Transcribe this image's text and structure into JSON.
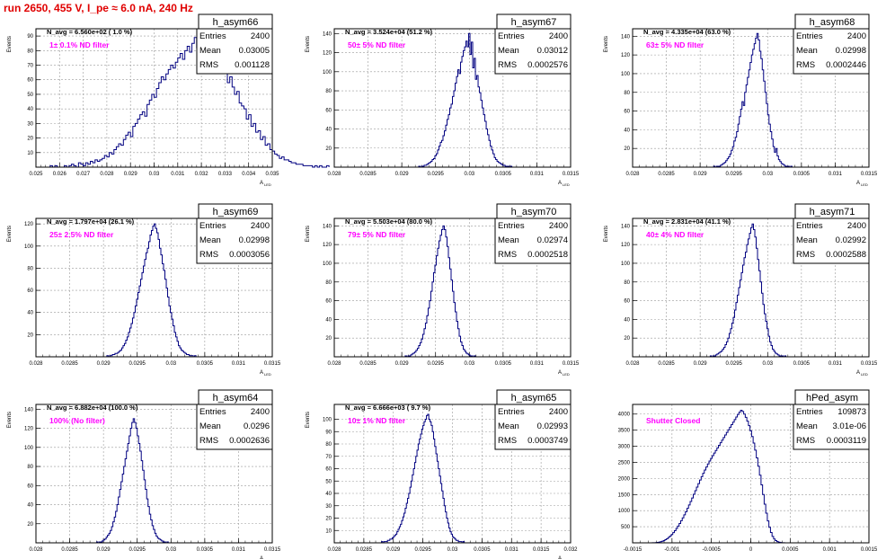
{
  "page_title": "run 2650,   455 V, I_pe ≈ 6.0 nA, 240 Hz",
  "colors": {
    "title": "#e00000",
    "annotation": "#ff00ff",
    "histogram": "#000080",
    "grid": "#9a9a9a"
  },
  "chart_data": [
    {
      "type": "histogram",
      "title": "h_asym66",
      "navg": "N_avg = 6.560e+02 ( 1.0 %)",
      "annotation": "1± 0.1% ND filter",
      "stats": [
        {
          "label": "Entries",
          "value": "2400"
        },
        {
          "label": "Mean",
          "value": "0.03005"
        },
        {
          "label": "RMS",
          "value": "0.001128"
        }
      ],
      "ylabel": "Events",
      "xlabel": "A LED",
      "xlim": [
        0.025,
        0.035
      ],
      "ylim": [
        0,
        95
      ],
      "xticks": [
        "0.025",
        "0.026",
        "0.027",
        "0.028",
        "0.029",
        "0.03",
        "0.031",
        "0.032",
        "0.033",
        "0.034",
        "0.035"
      ],
      "yticks": [
        "10",
        "20",
        "30",
        "40",
        "50",
        "60",
        "70",
        "80",
        "90"
      ],
      "bin_start": 0.0256,
      "bin_width": 0.0001,
      "values": [
        1,
        0,
        1,
        0,
        0,
        0,
        1,
        0,
        1,
        2,
        1,
        0,
        3,
        2,
        1,
        3,
        2,
        4,
        3,
        5,
        4,
        5,
        6,
        8,
        7,
        10,
        9,
        12,
        14,
        16,
        15,
        19,
        22,
        24,
        21,
        28,
        30,
        33,
        36,
        38,
        35,
        43,
        46,
        50,
        48,
        54,
        58,
        62,
        60,
        64,
        67,
        70,
        68,
        72,
        75,
        78,
        74,
        80,
        83,
        79,
        85,
        89,
        82,
        91,
        86,
        80,
        88,
        84,
        76,
        81,
        74,
        70,
        73,
        65,
        66,
        58,
        62,
        55,
        50,
        52,
        44,
        42,
        40,
        33,
        36,
        28,
        30,
        24,
        25,
        19,
        21,
        15,
        16,
        12,
        11,
        9,
        8,
        6,
        7,
        5,
        5,
        4,
        3,
        3,
        2,
        2,
        2,
        1,
        1,
        1,
        1,
        0,
        1,
        0,
        1,
        0,
        0,
        1
      ]
    },
    {
      "type": "histogram",
      "title": "h_asym67",
      "navg": "N_avg = 3.524e+04 (51.2 %)",
      "annotation": "50± 5% ND filter",
      "stats": [
        {
          "label": "Entries",
          "value": "2400"
        },
        {
          "label": "Mean",
          "value": "0.03012"
        },
        {
          "label": "RMS",
          "value": "0.0002576"
        }
      ],
      "ylabel": "Events",
      "xlabel": "A LED",
      "xlim": [
        0.028,
        0.0315
      ],
      "ylim": [
        0,
        145
      ],
      "xticks": [
        "0.028",
        "0.0285",
        "0.029",
        "0.0295",
        "0.03",
        "0.0305",
        "0.031",
        "0.0315"
      ],
      "yticks": [
        "20",
        "40",
        "60",
        "80",
        "100",
        "120",
        "140"
      ],
      "bin_start": 0.02925,
      "bin_width": 2e-05,
      "values": [
        1,
        0,
        1,
        1,
        2,
        2,
        3,
        4,
        5,
        6,
        8,
        9,
        12,
        14,
        18,
        22,
        26,
        28,
        33,
        38,
        44,
        50,
        55,
        62,
        66,
        74,
        80,
        88,
        95,
        102,
        98,
        110,
        116,
        122,
        126,
        132,
        126,
        140,
        118,
        131,
        104,
        114,
        92,
        96,
        84,
        78,
        70,
        62,
        55,
        48,
        40,
        34,
        28,
        22,
        18,
        14,
        10,
        8,
        6,
        5,
        4,
        3,
        2,
        2,
        1,
        1,
        1,
        0,
        1
      ]
    },
    {
      "type": "histogram",
      "title": "h_asym68",
      "navg": "N_avg = 4.335e+04 (63.0 %)",
      "annotation": "63± 5% ND filter",
      "stats": [
        {
          "label": "Entries",
          "value": "2400"
        },
        {
          "label": "Mean",
          "value": "0.02998"
        },
        {
          "label": "RMS",
          "value": "0.0002446"
        }
      ],
      "ylabel": "Events",
      "xlabel": "A LED",
      "xlim": [
        0.028,
        0.0315
      ],
      "ylim": [
        0,
        148
      ],
      "xticks": [
        "0.028",
        "0.0285",
        "0.029",
        "0.0295",
        "0.03",
        "0.0305",
        "0.031",
        "0.0315"
      ],
      "yticks": [
        "20",
        "40",
        "60",
        "80",
        "100",
        "120",
        "140"
      ],
      "bin_start": 0.0292,
      "bin_width": 2e-05,
      "values": [
        1,
        0,
        1,
        1,
        1,
        2,
        3,
        4,
        5,
        7,
        9,
        11,
        14,
        18,
        22,
        28,
        32,
        38,
        46,
        54,
        62,
        70,
        66,
        80,
        88,
        96,
        104,
        112,
        120,
        126,
        132,
        138,
        143,
        136,
        124,
        116,
        104,
        92,
        80,
        68,
        56,
        46,
        38,
        30,
        22,
        16,
        20,
        12,
        8,
        6,
        4,
        3,
        2,
        1,
        1,
        1,
        0,
        1
      ]
    },
    {
      "type": "histogram",
      "title": "h_asym69",
      "navg": "N_avg = 1.797e+04 (26.1 %)",
      "annotation": "25± 2.5% ND filter",
      "stats": [
        {
          "label": "Entries",
          "value": "2400"
        },
        {
          "label": "Mean",
          "value": "0.02998"
        },
        {
          "label": "RMS",
          "value": "0.0003056"
        }
      ],
      "ylabel": "Events",
      "xlabel": "A LED",
      "xlim": [
        0.028,
        0.0315
      ],
      "ylim": [
        0,
        125
      ],
      "xticks": [
        "0.028",
        "0.0285",
        "0.029",
        "0.0295",
        "0.03",
        "0.0305",
        "0.031",
        "0.0315"
      ],
      "yticks": [
        "20",
        "40",
        "60",
        "80",
        "100",
        "120"
      ],
      "bin_start": 0.02905,
      "bin_width": 2e-05,
      "values": [
        1,
        0,
        1,
        1,
        2,
        2,
        3,
        3,
        4,
        5,
        6,
        8,
        10,
        12,
        15,
        18,
        22,
        26,
        30,
        35,
        40,
        46,
        52,
        58,
        64,
        70,
        76,
        82,
        88,
        94,
        98,
        104,
        110,
        114,
        118,
        120,
        116,
        112,
        106,
        98,
        92,
        84,
        78,
        70,
        62,
        54,
        46,
        40,
        34,
        28,
        22,
        18,
        14,
        10,
        8,
        6,
        5,
        4,
        3,
        2,
        2,
        1,
        1,
        1,
        0,
        1
      ]
    },
    {
      "type": "histogram",
      "title": "h_asym70",
      "navg": "N_avg = 5.503e+04 (80.0 %)",
      "annotation": "79± 5% ND filter",
      "stats": [
        {
          "label": "Entries",
          "value": "2400"
        },
        {
          "label": "Mean",
          "value": "0.02974"
        },
        {
          "label": "RMS",
          "value": "0.0002518"
        }
      ],
      "ylabel": "Events",
      "xlabel": "A LED",
      "xlim": [
        0.028,
        0.0315
      ],
      "ylim": [
        0,
        148
      ],
      "xticks": [
        "0.028",
        "0.0285",
        "0.029",
        "0.0295",
        "0.03",
        "0.0305",
        "0.031",
        "0.0315"
      ],
      "yticks": [
        "20",
        "40",
        "60",
        "80",
        "100",
        "120",
        "140"
      ],
      "bin_start": 0.02905,
      "bin_width": 2e-05,
      "values": [
        1,
        0,
        1,
        1,
        2,
        3,
        4,
        5,
        7,
        9,
        12,
        15,
        19,
        24,
        30,
        36,
        44,
        52,
        60,
        70,
        80,
        90,
        98,
        108,
        116,
        124,
        130,
        136,
        140,
        136,
        128,
        118,
        106,
        94,
        82,
        70,
        58,
        48,
        38,
        30,
        22,
        16,
        12,
        8,
        6,
        4,
        3,
        2,
        1,
        1,
        0,
        1
      ]
    },
    {
      "type": "histogram",
      "title": "h_asym71",
      "navg": "N_avg = 2.831e+04 (41.1 %)",
      "annotation": "40± 4% ND filter",
      "stats": [
        {
          "label": "Entries",
          "value": "2400"
        },
        {
          "label": "Mean",
          "value": "0.02992"
        },
        {
          "label": "RMS",
          "value": "0.0002588"
        }
      ],
      "ylabel": "Events",
      "xlabel": "A LED",
      "xlim": [
        0.028,
        0.0315
      ],
      "ylim": [
        0,
        148
      ],
      "xticks": [
        "0.028",
        "0.0285",
        "0.029",
        "0.0295",
        "0.03",
        "0.0305",
        "0.031",
        "0.0315"
      ],
      "yticks": [
        "20",
        "40",
        "60",
        "80",
        "100",
        "120",
        "140"
      ],
      "bin_start": 0.02915,
      "bin_width": 2e-05,
      "values": [
        1,
        0,
        1,
        1,
        2,
        3,
        4,
        5,
        6,
        8,
        10,
        13,
        16,
        20,
        25,
        30,
        36,
        42,
        50,
        58,
        66,
        74,
        82,
        90,
        98,
        106,
        112,
        120,
        126,
        132,
        138,
        142,
        136,
        128,
        116,
        104,
        92,
        80,
        68,
        56,
        46,
        38,
        30,
        22,
        16,
        12,
        8,
        6,
        4,
        3,
        2,
        1,
        1,
        1,
        0,
        1
      ]
    },
    {
      "type": "histogram",
      "title": "h_asym64",
      "navg": "N_avg = 6.882e+04 (100.0 %)",
      "annotation": "100% (No filter)",
      "stats": [
        {
          "label": "Entries",
          "value": "2400"
        },
        {
          "label": "Mean",
          "value": "0.0296"
        },
        {
          "label": "RMS",
          "value": "0.0002636"
        }
      ],
      "ylabel": "Events",
      "xlabel": "A LED",
      "xlim": [
        0.028,
        0.0315
      ],
      "ylim": [
        0,
        145
      ],
      "xticks": [
        "0.028",
        "0.0285",
        "0.029",
        "0.0295",
        "0.03",
        "0.0305",
        "0.031",
        "0.0315"
      ],
      "yticks": [
        "20",
        "40",
        "60",
        "80",
        "100",
        "120",
        "140"
      ],
      "bin_start": 0.0289,
      "bin_width": 2e-05,
      "values": [
        1,
        0,
        1,
        1,
        2,
        3,
        4,
        6,
        8,
        10,
        13,
        17,
        22,
        27,
        33,
        40,
        48,
        56,
        64,
        72,
        80,
        88,
        96,
        104,
        112,
        120,
        126,
        130,
        126,
        120,
        112,
        104,
        96,
        86,
        76,
        66,
        56,
        46,
        38,
        30,
        24,
        18,
        14,
        10,
        7,
        5,
        4,
        3,
        2,
        1,
        1,
        0,
        1
      ]
    },
    {
      "type": "histogram",
      "title": "h_asym65",
      "navg": "N_avg = 6.666e+03 ( 9.7 %)",
      "annotation": "10± 1% ND filter",
      "stats": [
        {
          "label": "Entries",
          "value": "2400"
        },
        {
          "label": "Mean",
          "value": "0.02993"
        },
        {
          "label": "RMS",
          "value": "0.0003749"
        }
      ],
      "ylabel": "Events",
      "xlabel": "A LED",
      "xlim": [
        0.028,
        0.032
      ],
      "ylim": [
        0,
        112
      ],
      "xticks": [
        "0.028",
        "0.0285",
        "0.029",
        "0.0295",
        "0.03",
        "0.0305",
        "0.031",
        "0.0315",
        "0.032"
      ],
      "yticks": [
        "10",
        "20",
        "30",
        "40",
        "50",
        "60",
        "70",
        "80",
        "90",
        "100"
      ],
      "bin_start": 0.0288,
      "bin_width": 2e-05,
      "values": [
        1,
        0,
        1,
        1,
        1,
        2,
        2,
        3,
        3,
        4,
        5,
        6,
        7,
        9,
        11,
        13,
        15,
        18,
        21,
        24,
        28,
        32,
        36,
        40,
        45,
        50,
        55,
        60,
        65,
        70,
        75,
        80,
        84,
        88,
        92,
        95,
        98,
        100,
        103,
        104,
        100,
        98,
        95,
        90,
        84,
        78,
        72,
        66,
        60,
        54,
        48,
        42,
        36,
        30,
        25,
        20,
        16,
        12,
        9,
        7,
        5,
        4,
        3,
        2,
        2,
        1,
        1,
        1,
        0,
        1
      ]
    },
    {
      "type": "histogram",
      "title": "hPed_asym",
      "navg": "",
      "annotation": "Shutter Closed",
      "stats": [
        {
          "label": "Entries",
          "value": "109873"
        },
        {
          "label": "Mean",
          "value": "3.01e-06"
        },
        {
          "label": "RMS",
          "value": "0.0003119"
        }
      ],
      "ylabel": "",
      "xlabel": "",
      "xlim": [
        -0.0015,
        0.0015
      ],
      "ylim": [
        0,
        4300
      ],
      "xticks": [
        "-0.0015",
        "-0.001",
        "-0.0005",
        "0",
        "0.0005",
        "0.001",
        "0.0015"
      ],
      "yticks": [
        "500",
        "1000",
        "1500",
        "2000",
        "2500",
        "3000",
        "3500",
        "4000"
      ],
      "bin_start": -0.00125,
      "bin_width": 2e-05,
      "values": [
        2,
        4,
        8,
        14,
        22,
        34,
        50,
        70,
        96,
        128,
        166,
        210,
        260,
        316,
        378,
        446,
        520,
        600,
        686,
        776,
        870,
        968,
        1070,
        1176,
        1284,
        1394,
        1506,
        1618,
        1730,
        1840,
        1950,
        2056,
        2160,
        2260,
        2356,
        2450,
        2540,
        2626,
        2710,
        2790,
        2870,
        2950,
        3030,
        3110,
        3190,
        3270,
        3350,
        3430,
        3510,
        3590,
        3670,
        3750,
        3830,
        3910,
        3990,
        4060,
        4120,
        4080,
        4000,
        3900,
        3780,
        3640,
        3480,
        3300,
        3100,
        2880,
        2640,
        2380,
        2100,
        1800,
        1500,
        1200,
        920,
        680,
        480,
        320,
        200,
        120,
        70,
        40,
        20,
        10,
        5,
        2,
        1
      ]
    }
  ]
}
